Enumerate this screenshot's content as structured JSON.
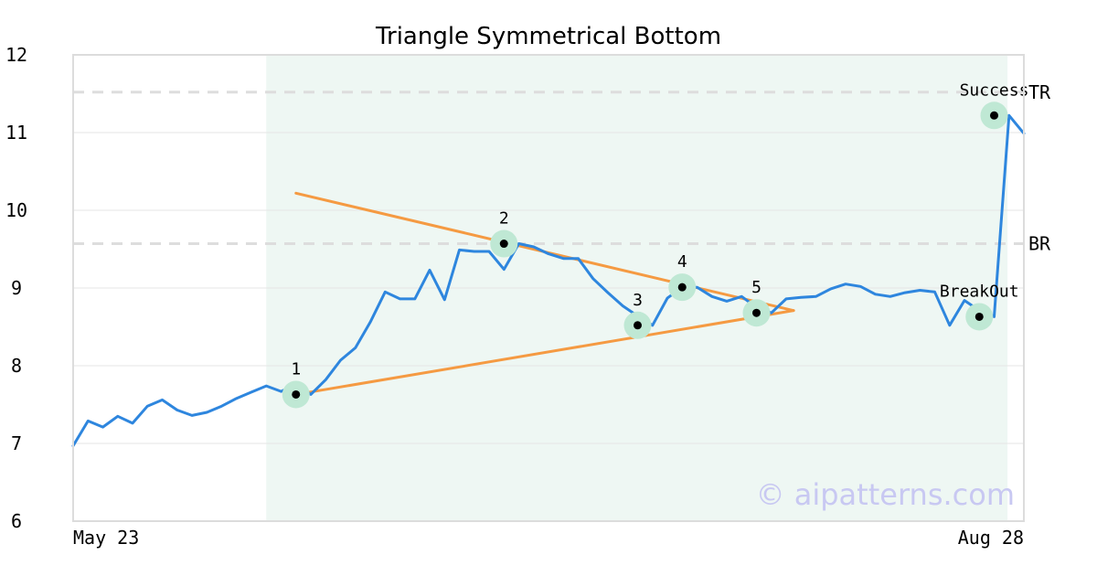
{
  "chart_data": {
    "type": "line",
    "title": "Triangle Symmetrical Bottom",
    "xlabel": "",
    "ylabel": "",
    "x_tick_labels": [
      "May 23",
      "Aug 28"
    ],
    "y_ticks": [
      6,
      7,
      8,
      9,
      10,
      11,
      12
    ],
    "ylim": [
      6,
      12
    ],
    "grid": "horizontal",
    "series": [
      {
        "values": [
          6.97,
          7.29,
          7.21,
          7.35,
          7.26,
          7.48,
          7.56,
          7.43,
          7.36,
          7.4,
          7.48,
          7.58,
          7.66,
          7.74,
          7.67,
          7.76,
          7.63,
          7.82,
          8.07,
          8.23,
          8.56,
          8.95,
          8.86,
          8.86,
          9.23,
          8.85,
          9.49,
          9.47,
          9.47,
          9.24,
          9.57,
          9.53,
          9.44,
          9.38,
          9.38,
          9.12,
          8.94,
          8.77,
          8.64,
          8.52,
          8.87,
          9.01,
          9.01,
          8.89,
          8.83,
          8.89,
          8.75,
          8.68,
          8.86,
          8.88,
          8.89,
          8.99,
          9.05,
          9.02,
          8.92,
          8.89,
          8.94,
          8.97,
          8.95,
          8.52,
          8.84,
          8.71,
          8.63,
          11.22,
          10.99
        ]
      }
    ],
    "pattern_zone": {
      "x_start": 13,
      "x_end": 62.9
    },
    "reference_lines": [
      {
        "label": "TR",
        "value": 11.52
      },
      {
        "label": "BR",
        "value": 9.57
      }
    ],
    "trendlines": [
      {
        "from": [
          15,
          10.22
        ],
        "to": [
          48.5,
          8.71
        ]
      },
      {
        "from": [
          15,
          7.63
        ],
        "to": [
          48.5,
          8.71
        ]
      }
    ],
    "points": [
      {
        "label": "1",
        "x": 15,
        "y": 7.63
      },
      {
        "label": "2",
        "x": 29,
        "y": 9.57
      },
      {
        "label": "3",
        "x": 38,
        "y": 8.52
      },
      {
        "label": "4",
        "x": 41,
        "y": 9.01
      },
      {
        "label": "5",
        "x": 46,
        "y": 8.68
      },
      {
        "label": "BreakOut",
        "x": 61,
        "y": 8.63
      },
      {
        "label": "Success",
        "x": 62,
        "y": 11.22
      }
    ],
    "watermark": "© aipatterns.com",
    "colors": {
      "line": "#2e86de",
      "trend": "#f59a42",
      "zone": "#eef7f3",
      "marker_halo": "#bfe8d4",
      "ref": "#dddddd",
      "watermark": "#c8c8f2"
    }
  }
}
